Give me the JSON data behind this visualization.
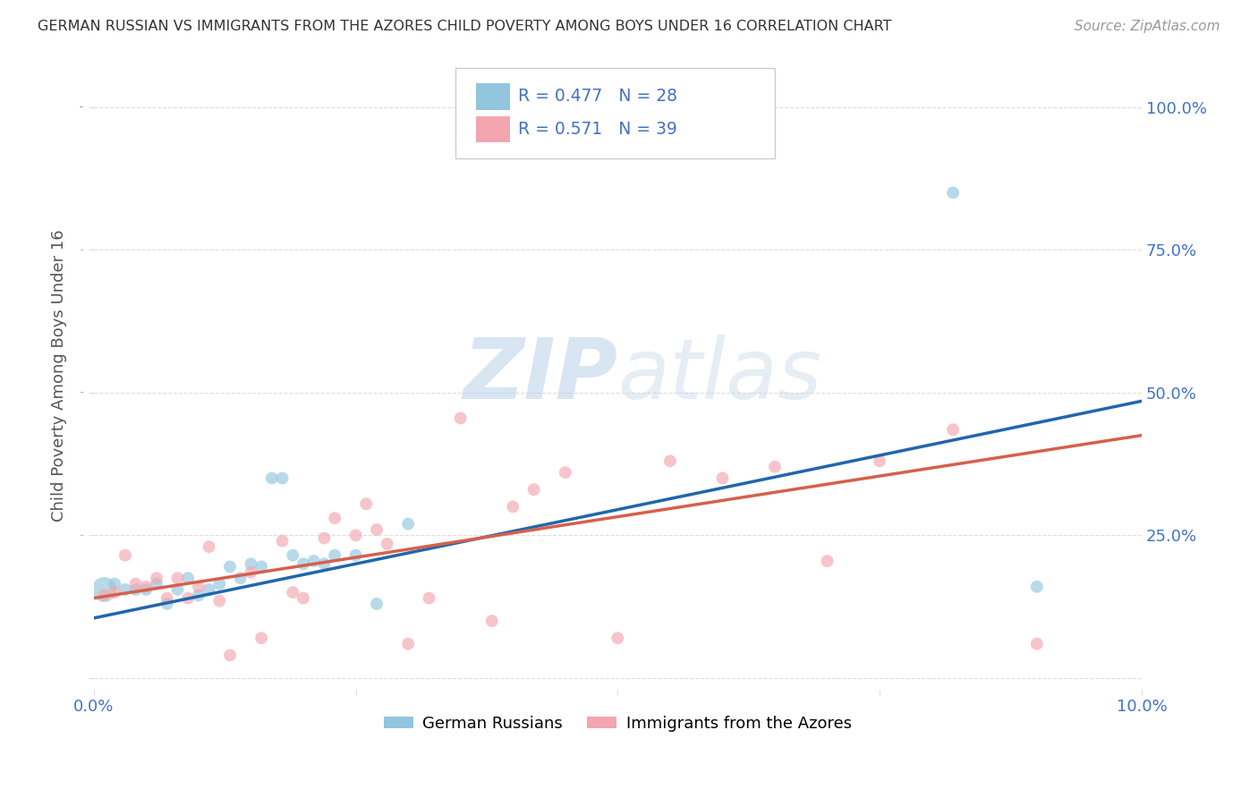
{
  "title": "GERMAN RUSSIAN VS IMMIGRANTS FROM THE AZORES CHILD POVERTY AMONG BOYS UNDER 16 CORRELATION CHART",
  "source": "Source: ZipAtlas.com",
  "ylabel": "Child Poverty Among Boys Under 16",
  "xlim": [
    0.0,
    0.1
  ],
  "ylim": [
    -0.02,
    1.08
  ],
  "yticks": [
    0.0,
    0.25,
    0.5,
    0.75,
    1.0
  ],
  "ytick_labels": [
    "",
    "25.0%",
    "50.0%",
    "75.0%",
    "100.0%"
  ],
  "xticks": [
    0.0,
    0.025,
    0.05,
    0.075,
    0.1
  ],
  "xtick_labels": [
    "0.0%",
    "",
    "",
    "",
    "10.0%"
  ],
  "blue_R": 0.477,
  "blue_N": 28,
  "pink_R": 0.571,
  "pink_N": 39,
  "blue_color": "#92C5DE",
  "pink_color": "#F4A5B0",
  "blue_line_color": "#2166AC",
  "pink_line_color": "#D6604D",
  "tick_color": "#4472C4",
  "watermark_color": "#dce8f0",
  "background_color": "#FFFFFF",
  "grid_color": "#DDDDDD",
  "blue_scatter_x": [
    0.001,
    0.002,
    0.003,
    0.004,
    0.005,
    0.006,
    0.007,
    0.008,
    0.009,
    0.01,
    0.011,
    0.012,
    0.013,
    0.014,
    0.015,
    0.016,
    0.017,
    0.018,
    0.019,
    0.02,
    0.021,
    0.022,
    0.023,
    0.025,
    0.027,
    0.03,
    0.082,
    0.09
  ],
  "blue_scatter_y": [
    0.155,
    0.165,
    0.155,
    0.155,
    0.155,
    0.165,
    0.13,
    0.155,
    0.175,
    0.145,
    0.155,
    0.165,
    0.195,
    0.175,
    0.2,
    0.195,
    0.35,
    0.35,
    0.215,
    0.2,
    0.205,
    0.2,
    0.215,
    0.215,
    0.13,
    0.27,
    0.85,
    0.16
  ],
  "blue_scatter_size": [
    400,
    100,
    100,
    100,
    100,
    100,
    100,
    100,
    100,
    100,
    100,
    100,
    100,
    100,
    100,
    100,
    100,
    100,
    100,
    100,
    100,
    100,
    100,
    100,
    100,
    100,
    100,
    100
  ],
  "pink_scatter_x": [
    0.001,
    0.002,
    0.003,
    0.004,
    0.005,
    0.006,
    0.007,
    0.008,
    0.009,
    0.01,
    0.011,
    0.012,
    0.013,
    0.015,
    0.016,
    0.018,
    0.019,
    0.02,
    0.022,
    0.023,
    0.025,
    0.026,
    0.027,
    0.028,
    0.03,
    0.032,
    0.035,
    0.038,
    0.04,
    0.042,
    0.045,
    0.05,
    0.055,
    0.06,
    0.065,
    0.07,
    0.075,
    0.082,
    0.09
  ],
  "pink_scatter_y": [
    0.145,
    0.15,
    0.215,
    0.165,
    0.16,
    0.175,
    0.14,
    0.175,
    0.14,
    0.16,
    0.23,
    0.135,
    0.04,
    0.185,
    0.07,
    0.24,
    0.15,
    0.14,
    0.245,
    0.28,
    0.25,
    0.305,
    0.26,
    0.235,
    0.06,
    0.14,
    0.455,
    0.1,
    0.3,
    0.33,
    0.36,
    0.07,
    0.38,
    0.35,
    0.37,
    0.205,
    0.38,
    0.435,
    0.06
  ],
  "pink_scatter_size": [
    100,
    100,
    100,
    100,
    100,
    100,
    100,
    100,
    100,
    100,
    100,
    100,
    100,
    100,
    100,
    100,
    100,
    100,
    100,
    100,
    100,
    100,
    100,
    100,
    100,
    100,
    100,
    100,
    100,
    100,
    100,
    100,
    100,
    100,
    100,
    100,
    100,
    100,
    100
  ],
  "blue_line_x": [
    0.0,
    0.1
  ],
  "blue_line_y": [
    0.105,
    0.485
  ],
  "pink_line_x": [
    0.0,
    0.1
  ],
  "pink_line_y": [
    0.14,
    0.425
  ],
  "legend_blue_label": "German Russians",
  "legend_pink_label": "Immigrants from the Azores"
}
